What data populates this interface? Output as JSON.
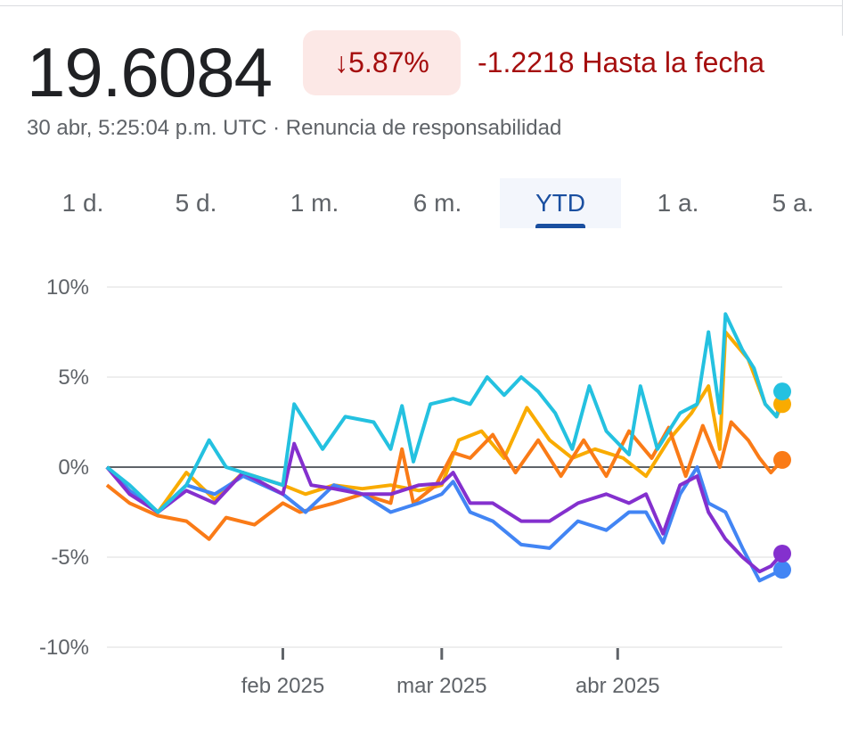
{
  "header": {
    "price": "19.6084",
    "change_pct": "5.87%",
    "arrow_icon": "arrow-down-icon",
    "change_abs": "-1.2218 Hasta la fecha",
    "timestamp": "30 abr, 5:25:04 p.m. UTC · Renuncia de responsabilidad"
  },
  "tabs": [
    {
      "label": "1 d."
    },
    {
      "label": "5 d."
    },
    {
      "label": "1 m."
    },
    {
      "label": "6 m."
    },
    {
      "label": "YTD",
      "active": true
    },
    {
      "label": "1 a."
    },
    {
      "label": "5 a."
    }
  ],
  "colors": {
    "negative": "#a50e0e",
    "badge_bg": "#fce8e6",
    "accent": "#1a4fa0"
  },
  "chart_data": {
    "type": "line",
    "ylim": [
      -10,
      10
    ],
    "xlim": [
      "2025-01-01",
      "2025-04-30"
    ],
    "grid": true,
    "y_ticks": [
      "10%",
      "5%",
      "0%",
      "-5%",
      "-10%"
    ],
    "y_tick_values": [
      10,
      5,
      0,
      -5,
      -10
    ],
    "x_ticks": [
      {
        "label": "feb 2025",
        "date": "2025-02-01"
      },
      {
        "label": "mar 2025",
        "date": "2025-03-01"
      },
      {
        "label": "abr 2025",
        "date": "2025-04-01"
      }
    ],
    "baseline": 0,
    "series": [
      {
        "color": "#f9ab00",
        "points": [
          [
            "2025-01-01",
            0
          ],
          [
            "2025-01-05",
            -1.3
          ],
          [
            "2025-01-10",
            -2.5
          ],
          [
            "2025-01-15",
            -0.3
          ],
          [
            "2025-01-20",
            -1.8
          ],
          [
            "2025-01-25",
            -0.3
          ],
          [
            "2025-02-01",
            -1
          ],
          [
            "2025-02-05",
            -1.5
          ],
          [
            "2025-02-10",
            -1
          ],
          [
            "2025-02-15",
            -1.2
          ],
          [
            "2025-02-20",
            -1
          ],
          [
            "2025-02-25",
            -1.3
          ],
          [
            "2025-03-01",
            -1
          ],
          [
            "2025-03-04",
            1.5
          ],
          [
            "2025-03-08",
            2
          ],
          [
            "2025-03-12",
            0.5
          ],
          [
            "2025-03-16",
            3.3
          ],
          [
            "2025-03-20",
            1.5
          ],
          [
            "2025-03-24",
            0.5
          ],
          [
            "2025-03-28",
            1
          ],
          [
            "2025-04-02",
            0.5
          ],
          [
            "2025-04-06",
            -0.5
          ],
          [
            "2025-04-10",
            1.5
          ],
          [
            "2025-04-14",
            3
          ],
          [
            "2025-04-17",
            4.5
          ],
          [
            "2025-04-19",
            1
          ],
          [
            "2025-04-20",
            7.5
          ],
          [
            "2025-04-24",
            6
          ],
          [
            "2025-04-27",
            3.5
          ],
          [
            "2025-04-29",
            2.8
          ],
          [
            "2025-04-30",
            3.5
          ]
        ]
      },
      {
        "color": "#fa7b17",
        "points": [
          [
            "2025-01-01",
            -1
          ],
          [
            "2025-01-05",
            -2
          ],
          [
            "2025-01-10",
            -2.7
          ],
          [
            "2025-01-15",
            -3
          ],
          [
            "2025-01-19",
            -4
          ],
          [
            "2025-01-22",
            -2.8
          ],
          [
            "2025-01-27",
            -3.2
          ],
          [
            "2025-02-01",
            -2
          ],
          [
            "2025-02-04",
            -2.5
          ],
          [
            "2025-02-10",
            -2
          ],
          [
            "2025-02-15",
            -1.5
          ],
          [
            "2025-02-20",
            -2
          ],
          [
            "2025-02-22",
            1
          ],
          [
            "2025-02-24",
            -2
          ],
          [
            "2025-02-28",
            -1
          ],
          [
            "2025-03-03",
            0.8
          ],
          [
            "2025-03-06",
            0.5
          ],
          [
            "2025-03-10",
            1.8
          ],
          [
            "2025-03-14",
            -0.3
          ],
          [
            "2025-03-18",
            1.5
          ],
          [
            "2025-03-22",
            -0.5
          ],
          [
            "2025-03-26",
            1.5
          ],
          [
            "2025-03-30",
            -0.5
          ],
          [
            "2025-04-03",
            2
          ],
          [
            "2025-04-07",
            0.5
          ],
          [
            "2025-04-10",
            2.2
          ],
          [
            "2025-04-13",
            -0.5
          ],
          [
            "2025-04-16",
            2.3
          ],
          [
            "2025-04-19",
            0
          ],
          [
            "2025-04-21",
            2.5
          ],
          [
            "2025-04-24",
            1.5
          ],
          [
            "2025-04-26",
            0.5
          ],
          [
            "2025-04-28",
            -0.3
          ],
          [
            "2025-04-30",
            0.4
          ]
        ]
      },
      {
        "color": "#4285f4",
        "points": [
          [
            "2025-01-01",
            0
          ],
          [
            "2025-01-05",
            -1.3
          ],
          [
            "2025-01-10",
            -2.5
          ],
          [
            "2025-01-15",
            -1
          ],
          [
            "2025-01-20",
            -1.5
          ],
          [
            "2025-01-25",
            -0.5
          ],
          [
            "2025-02-01",
            -1.5
          ],
          [
            "2025-02-05",
            -2.5
          ],
          [
            "2025-02-10",
            -1
          ],
          [
            "2025-02-15",
            -1.5
          ],
          [
            "2025-02-20",
            -2.5
          ],
          [
            "2025-02-25",
            -2
          ],
          [
            "2025-03-01",
            -1.5
          ],
          [
            "2025-03-03",
            -0.8
          ],
          [
            "2025-03-06",
            -2.5
          ],
          [
            "2025-03-10",
            -3
          ],
          [
            "2025-03-15",
            -4.3
          ],
          [
            "2025-03-20",
            -4.5
          ],
          [
            "2025-03-25",
            -3
          ],
          [
            "2025-03-30",
            -3.5
          ],
          [
            "2025-04-03",
            -2.5
          ],
          [
            "2025-04-06",
            -2.5
          ],
          [
            "2025-04-09",
            -4.2
          ],
          [
            "2025-04-12",
            -1.5
          ],
          [
            "2025-04-15",
            0
          ],
          [
            "2025-04-17",
            -2
          ],
          [
            "2025-04-20",
            -2.5
          ],
          [
            "2025-04-23",
            -4.5
          ],
          [
            "2025-04-26",
            -6.3
          ],
          [
            "2025-04-28",
            -6
          ],
          [
            "2025-04-30",
            -5.7
          ]
        ]
      },
      {
        "color": "#8430ce",
        "points": [
          [
            "2025-01-01",
            0
          ],
          [
            "2025-01-05",
            -1.5
          ],
          [
            "2025-01-10",
            -2.5
          ],
          [
            "2025-01-15",
            -1.3
          ],
          [
            "2025-01-20",
            -2
          ],
          [
            "2025-01-25",
            -0.3
          ],
          [
            "2025-02-01",
            -1.5
          ],
          [
            "2025-02-03",
            1.3
          ],
          [
            "2025-02-06",
            -1
          ],
          [
            "2025-02-10",
            -1.2
          ],
          [
            "2025-02-15",
            -1.5
          ],
          [
            "2025-02-20",
            -1.5
          ],
          [
            "2025-02-25",
            -1
          ],
          [
            "2025-03-01",
            -0.9
          ],
          [
            "2025-03-03",
            -0.3
          ],
          [
            "2025-03-06",
            -2
          ],
          [
            "2025-03-10",
            -2
          ],
          [
            "2025-03-15",
            -3
          ],
          [
            "2025-03-20",
            -3
          ],
          [
            "2025-03-25",
            -2
          ],
          [
            "2025-03-30",
            -1.5
          ],
          [
            "2025-04-03",
            -2
          ],
          [
            "2025-04-06",
            -1.5
          ],
          [
            "2025-04-09",
            -3.7
          ],
          [
            "2025-04-12",
            -1
          ],
          [
            "2025-04-15",
            -0.5
          ],
          [
            "2025-04-17",
            -2.5
          ],
          [
            "2025-04-20",
            -4
          ],
          [
            "2025-04-23",
            -5
          ],
          [
            "2025-04-26",
            -5.8
          ],
          [
            "2025-04-28",
            -5.5
          ],
          [
            "2025-04-30",
            -4.8
          ]
        ]
      },
      {
        "color": "#24c1e0",
        "points": [
          [
            "2025-01-01",
            0
          ],
          [
            "2025-01-05",
            -1
          ],
          [
            "2025-01-10",
            -2.5
          ],
          [
            "2025-01-15",
            -1
          ],
          [
            "2025-01-19",
            1.5
          ],
          [
            "2025-01-22",
            0
          ],
          [
            "2025-01-27",
            -0.5
          ],
          [
            "2025-02-01",
            -1
          ],
          [
            "2025-02-03",
            3.5
          ],
          [
            "2025-02-08",
            1
          ],
          [
            "2025-02-12",
            2.8
          ],
          [
            "2025-02-17",
            2.5
          ],
          [
            "2025-02-20",
            1
          ],
          [
            "2025-02-22",
            3.4
          ],
          [
            "2025-02-24",
            0.3
          ],
          [
            "2025-02-27",
            3.5
          ],
          [
            "2025-03-03",
            3.8
          ],
          [
            "2025-03-06",
            3.5
          ],
          [
            "2025-03-09",
            5
          ],
          [
            "2025-03-12",
            4
          ],
          [
            "2025-03-15",
            5
          ],
          [
            "2025-03-18",
            4.2
          ],
          [
            "2025-03-21",
            3
          ],
          [
            "2025-03-24",
            1
          ],
          [
            "2025-03-27",
            4.5
          ],
          [
            "2025-03-30",
            2
          ],
          [
            "2025-04-03",
            0.7
          ],
          [
            "2025-04-05",
            4.5
          ],
          [
            "2025-04-08",
            1
          ],
          [
            "2025-04-12",
            3
          ],
          [
            "2025-04-15",
            3.5
          ],
          [
            "2025-04-17",
            7.5
          ],
          [
            "2025-04-19",
            3
          ],
          [
            "2025-04-20",
            8.5
          ],
          [
            "2025-04-23",
            6.5
          ],
          [
            "2025-04-25",
            5.5
          ],
          [
            "2025-04-27",
            3.5
          ],
          [
            "2025-04-29",
            2.8
          ],
          [
            "2025-04-30",
            4.2
          ]
        ]
      }
    ]
  }
}
